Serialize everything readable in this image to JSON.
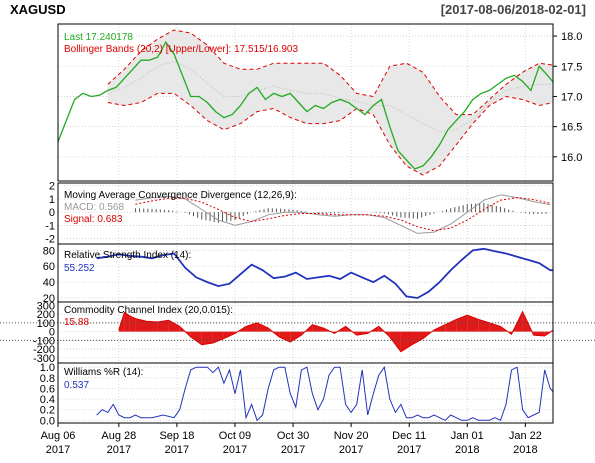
{
  "header": {
    "symbol": "XAGUSD",
    "date_range": "[2017-08-06/2018-02-01]"
  },
  "colors": {
    "price": "#22aa22",
    "bbands_line": "#dd0000",
    "bbands_fill": "#e8e8e8",
    "bbands_mid": "#bbbbbb",
    "macd_line": "#999999",
    "signal_line": "#dd0000",
    "histogram": "#555555",
    "rsi": "#2233bb",
    "cci_fill": "#dd0000",
    "williams": "#2233bb",
    "grid": "#cccccc"
  },
  "x_axis": {
    "ticks": [
      {
        "label": "Aug 06",
        "year": "2017",
        "day": 0
      },
      {
        "label": "Aug 28",
        "year": "2017",
        "day": 22
      },
      {
        "label": "Sep 18",
        "year": "2017",
        "day": 43
      },
      {
        "label": "Oct 09",
        "year": "2017",
        "day": 64
      },
      {
        "label": "Oct 30",
        "year": "2017",
        "day": 85
      },
      {
        "label": "Nov 20",
        "year": "2017",
        "day": 106
      },
      {
        "label": "Dec 11",
        "year": "2017",
        "day": 127
      },
      {
        "label": "Jan 01",
        "year": "2018",
        "day": 148
      },
      {
        "label": "Jan 22",
        "year": "2018",
        "day": 169
      }
    ],
    "day_range": [
      0,
      179
    ]
  },
  "chart_data": [
    {
      "type": "line",
      "panel": "price",
      "legend": [
        {
          "text": "Last 17.240178",
          "color": "#22aa22"
        },
        {
          "text": "Bollinger Bands (20,2) [Upper/Lower]: 17.515/16.903",
          "color": "#dd0000"
        }
      ],
      "ylim": [
        15.6,
        18.2
      ],
      "yticks": [
        "16.0",
        "16.5",
        "17.0",
        "17.5",
        "18.0"
      ],
      "ytick_values": [
        16.0,
        16.5,
        17.0,
        17.5,
        18.0
      ],
      "series": [
        {
          "role": "close",
          "x": [
            0,
            3,
            6,
            9,
            12,
            15,
            18,
            21,
            24,
            27,
            30,
            33,
            36,
            39,
            42,
            45,
            48,
            51,
            54,
            57,
            60,
            63,
            66,
            69,
            72,
            75,
            78,
            81,
            84,
            87,
            90,
            93,
            96,
            99,
            102,
            105,
            108,
            111,
            114,
            117,
            120,
            123,
            126,
            129,
            132,
            135,
            138,
            141,
            144,
            147,
            150,
            153,
            156,
            159,
            162,
            165,
            168,
            171,
            174,
            177,
            179
          ],
          "values": [
            16.25,
            16.6,
            16.95,
            17.05,
            17.0,
            17.02,
            17.1,
            17.15,
            17.3,
            17.45,
            17.6,
            17.6,
            17.65,
            17.9,
            17.7,
            17.35,
            17.0,
            17.0,
            16.9,
            16.75,
            16.65,
            16.7,
            16.85,
            17.05,
            17.15,
            16.95,
            17.05,
            17.0,
            17.05,
            16.9,
            16.75,
            16.85,
            16.8,
            16.9,
            16.95,
            16.9,
            16.8,
            16.7,
            16.85,
            16.95,
            16.5,
            16.1,
            15.95,
            15.8,
            15.85,
            16.0,
            16.2,
            16.45,
            16.6,
            16.75,
            16.95,
            17.05,
            17.1,
            17.2,
            17.3,
            17.35,
            17.25,
            17.1,
            17.5,
            17.35,
            17.24
          ]
        },
        {
          "role": "upper",
          "x": [
            18,
            24,
            30,
            36,
            42,
            48,
            54,
            60,
            66,
            72,
            78,
            84,
            90,
            96,
            102,
            108,
            114,
            120,
            126,
            132,
            138,
            144,
            150,
            156,
            162,
            168,
            174,
            179
          ],
          "values": [
            17.2,
            17.45,
            17.75,
            17.95,
            18.1,
            18.05,
            17.85,
            17.55,
            17.45,
            17.45,
            17.55,
            17.55,
            17.55,
            17.55,
            17.35,
            17.05,
            17.0,
            17.5,
            17.55,
            17.4,
            17.0,
            16.7,
            16.7,
            16.95,
            17.2,
            17.4,
            17.55,
            17.52
          ]
        },
        {
          "role": "lower",
          "x": [
            18,
            24,
            30,
            36,
            42,
            48,
            54,
            60,
            66,
            72,
            78,
            84,
            90,
            96,
            102,
            108,
            114,
            120,
            126,
            132,
            138,
            144,
            150,
            156,
            162,
            168,
            174,
            179
          ],
          "values": [
            16.9,
            16.85,
            16.9,
            17.05,
            17.05,
            16.85,
            16.6,
            16.45,
            16.55,
            16.75,
            16.8,
            16.65,
            16.55,
            16.55,
            16.6,
            16.8,
            16.7,
            16.2,
            15.85,
            15.7,
            15.85,
            16.2,
            16.55,
            16.85,
            17.0,
            16.95,
            16.85,
            16.9
          ]
        },
        {
          "role": "middle",
          "x": [
            18,
            24,
            30,
            36,
            42,
            48,
            54,
            60,
            66,
            72,
            78,
            84,
            90,
            96,
            102,
            108,
            114,
            120,
            126,
            132,
            138,
            144,
            150,
            156,
            162,
            168,
            174,
            179
          ],
          "values": [
            17.05,
            17.15,
            17.3,
            17.5,
            17.58,
            17.45,
            17.22,
            17.0,
            17.0,
            17.1,
            17.17,
            17.1,
            17.05,
            17.05,
            16.97,
            16.92,
            16.85,
            16.85,
            16.7,
            16.55,
            16.42,
            16.45,
            16.62,
            16.9,
            17.1,
            17.17,
            17.2,
            17.21
          ]
        }
      ]
    },
    {
      "type": "line",
      "panel": "macd",
      "title": "Moving Average Convergence Divergence (12,26,9):",
      "legend": [
        {
          "text": "MACD: 0.568",
          "color": "#999999"
        },
        {
          "text": "Signal: 0.683",
          "color": "#dd0000"
        }
      ],
      "ylim": [
        -2.4,
        2.2
      ],
      "yticks": [
        "-2",
        "-1",
        "0",
        "1",
        "2"
      ],
      "ytick_values": [
        -2,
        -1,
        0,
        1,
        2
      ],
      "series": [
        {
          "role": "macd",
          "x": [
            28,
            34,
            40,
            46,
            52,
            58,
            64,
            70,
            76,
            82,
            88,
            94,
            100,
            106,
            112,
            118,
            124,
            130,
            136,
            142,
            148,
            154,
            160,
            166,
            172,
            178
          ],
          "values": [
            0.9,
            1.1,
            1.2,
            1.0,
            0.2,
            -0.6,
            -1.0,
            -0.7,
            -0.2,
            0.0,
            0.0,
            -0.2,
            -0.3,
            -0.2,
            -0.2,
            -0.4,
            -1.0,
            -1.6,
            -1.5,
            -0.9,
            0.0,
            0.9,
            1.3,
            1.1,
            0.8,
            0.57
          ]
        },
        {
          "role": "signal",
          "x": [
            28,
            34,
            40,
            46,
            52,
            58,
            64,
            70,
            76,
            82,
            88,
            94,
            100,
            106,
            112,
            118,
            124,
            130,
            136,
            142,
            148,
            154,
            160,
            166,
            172,
            178
          ],
          "values": [
            0.6,
            0.85,
            1.05,
            1.05,
            0.75,
            0.2,
            -0.4,
            -0.7,
            -0.5,
            -0.25,
            -0.1,
            -0.1,
            -0.2,
            -0.2,
            -0.2,
            -0.3,
            -0.6,
            -1.1,
            -1.4,
            -1.2,
            -0.6,
            0.2,
            0.9,
            1.1,
            0.95,
            0.68
          ]
        }
      ]
    },
    {
      "type": "line",
      "panel": "rsi",
      "title": "Relative Strength Index (14):",
      "legend": [
        {
          "text": "55.252",
          "color": "#2233bb"
        }
      ],
      "ylim": [
        15,
        88
      ],
      "yticks": [
        "20",
        "40",
        "60",
        "80"
      ],
      "ytick_values": [
        20,
        40,
        60,
        80
      ],
      "series": [
        {
          "role": "rsi",
          "x": [
            14,
            18,
            22,
            26,
            30,
            34,
            38,
            42,
            46,
            50,
            54,
            58,
            62,
            66,
            70,
            74,
            78,
            82,
            86,
            90,
            94,
            98,
            102,
            106,
            110,
            114,
            118,
            122,
            126,
            130,
            134,
            138,
            142,
            146,
            150,
            154,
            158,
            162,
            166,
            170,
            174,
            178,
            179
          ],
          "values": [
            70,
            72,
            75,
            73,
            72,
            70,
            74,
            76,
            58,
            46,
            40,
            35,
            38,
            50,
            62,
            55,
            45,
            47,
            52,
            44,
            46,
            48,
            44,
            52,
            46,
            40,
            48,
            38,
            22,
            20,
            28,
            40,
            55,
            68,
            80,
            82,
            79,
            76,
            72,
            68,
            64,
            55,
            55
          ]
        }
      ]
    },
    {
      "type": "area",
      "panel": "cci",
      "title": "Commodity Channel Index (20,0.015):",
      "legend": [
        {
          "text": "15.88",
          "color": "#dd0000"
        }
      ],
      "ylim": [
        -360,
        340
      ],
      "yticks": [
        "-300",
        "-200",
        "-100",
        "0",
        "100",
        "200",
        "300"
      ],
      "ytick_values": [
        -300,
        -200,
        -100,
        0,
        100,
        200,
        300
      ],
      "series": [
        {
          "role": "cci",
          "x": [
            22,
            24,
            26,
            28,
            32,
            36,
            40,
            44,
            48,
            52,
            56,
            60,
            64,
            68,
            72,
            76,
            80,
            84,
            88,
            92,
            96,
            100,
            104,
            108,
            112,
            116,
            120,
            124,
            128,
            132,
            136,
            140,
            144,
            148,
            152,
            156,
            160,
            164,
            168,
            172,
            176,
            179
          ],
          "values": [
            20,
            220,
            180,
            150,
            120,
            110,
            130,
            60,
            -60,
            -150,
            -130,
            -80,
            -20,
            60,
            100,
            40,
            -60,
            -120,
            -40,
            80,
            40,
            -20,
            60,
            -40,
            -20,
            60,
            -60,
            -230,
            -150,
            -80,
            20,
            80,
            140,
            190,
            140,
            100,
            60,
            -30,
            230,
            -40,
            -50,
            15.88
          ]
        }
      ]
    },
    {
      "type": "line",
      "panel": "williams",
      "title": "Williams %R (14):",
      "legend": [
        {
          "text": "0.537",
          "color": "#2233bb"
        }
      ],
      "ylim": [
        -0.05,
        1.08
      ],
      "yticks": [
        "0.0",
        "0.2",
        "0.4",
        "0.6",
        "0.8",
        "1.0"
      ],
      "ytick_values": [
        0,
        0.2,
        0.4,
        0.6,
        0.8,
        1.0
      ],
      "series": [
        {
          "role": "williams",
          "x": [
            14,
            16,
            18,
            20,
            22,
            24,
            26,
            28,
            30,
            34,
            38,
            42,
            44,
            46,
            48,
            50,
            52,
            54,
            56,
            58,
            60,
            62,
            64,
            66,
            68,
            70,
            72,
            74,
            76,
            78,
            80,
            82,
            84,
            86,
            88,
            90,
            92,
            94,
            96,
            98,
            100,
            102,
            104,
            106,
            108,
            110,
            112,
            114,
            116,
            118,
            120,
            122,
            124,
            126,
            128,
            130,
            132,
            134,
            136,
            138,
            140,
            142,
            144,
            146,
            148,
            150,
            152,
            154,
            156,
            158,
            160,
            162,
            164,
            166,
            168,
            170,
            172,
            174,
            176,
            178,
            179
          ],
          "values": [
            0.1,
            0.2,
            0.15,
            0.3,
            0.1,
            0.05,
            0.05,
            0.1,
            0.05,
            0.05,
            0.1,
            0.05,
            0.2,
            0.6,
            0.95,
            1.0,
            1.0,
            1.0,
            0.9,
            1.0,
            0.7,
            0.95,
            0.5,
            0.95,
            0.05,
            0.3,
            0.0,
            0.1,
            0.6,
            0.95,
            1.0,
            1.0,
            0.5,
            0.25,
            0.95,
            1.0,
            0.5,
            0.2,
            0.4,
            0.85,
            1.0,
            1.0,
            0.3,
            0.15,
            0.3,
            0.95,
            0.1,
            0.5,
            0.85,
            1.0,
            0.4,
            0.15,
            0.3,
            0.05,
            0.05,
            0.1,
            0.05,
            0.05,
            0.1,
            0.05,
            0.0,
            0.1,
            0.05,
            0.0,
            0.0,
            0.05,
            0.0,
            0.0,
            0.0,
            0.05,
            0.0,
            0.3,
            0.95,
            1.0,
            0.2,
            0.05,
            0.1,
            0.15,
            0.95,
            0.6,
            0.54
          ]
        }
      ]
    }
  ]
}
